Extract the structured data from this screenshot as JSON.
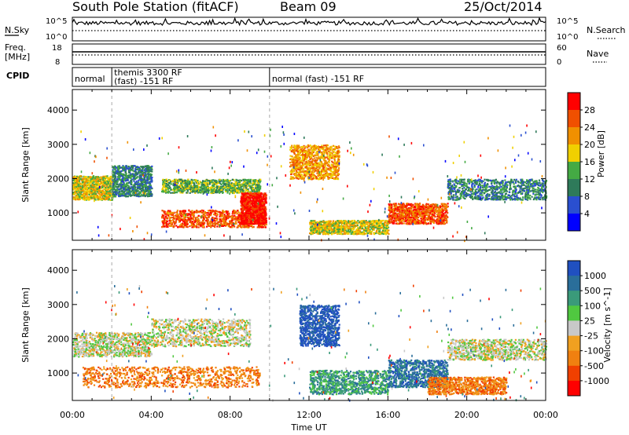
{
  "header": {
    "station": "South Pole Station (fitACF)",
    "beam": "Beam 09",
    "date": "25/Oct/2014"
  },
  "strip_labels": {
    "nsky": "N.Sky",
    "nsky_ticks": [
      "10^5",
      "10^0"
    ],
    "nsearch": "N.Search",
    "nsearch_ticks": [
      "10^5",
      "10^0"
    ],
    "freq": "Freq.",
    "freq_unit": "[MHz]",
    "freq_ticks": [
      "18",
      "8"
    ],
    "nave": "Nave",
    "nave_ticks": [
      "60",
      "0"
    ],
    "cpid": "CPID"
  },
  "cpid_segments": [
    {
      "start": 0.0,
      "end": 2.0,
      "line1": "normal",
      "line2": ""
    },
    {
      "start": 2.0,
      "end": 10.0,
      "line1": "themis 3300 RF",
      "line2": "(fast) -151 RF"
    },
    {
      "start": 10.0,
      "end": 24.0,
      "line1": "normal (fast) -151 RF",
      "line2": ""
    }
  ],
  "chart_data": [
    {
      "type": "heatmap",
      "name": "Power",
      "xlabel": "",
      "ylabel": "Slant Range [km]",
      "x_range_hours": [
        0,
        24
      ],
      "ylim": [
        200,
        4600
      ],
      "y_ticks": [
        "1000",
        "2000",
        "3000",
        "4000"
      ],
      "colorbar_label": "Power [dB]",
      "colorbar_ticks": [
        "4",
        "8",
        "12",
        "16",
        "20",
        "24",
        "28"
      ],
      "colorbar_colors": [
        "#0000ff",
        "#2a4fd0",
        "#2e7a5a",
        "#44aa44",
        "#f0d000",
        "#f09000",
        "#f05000",
        "#ff0000"
      ],
      "bands": [
        {
          "t0": 0.0,
          "t1": 2.0,
          "r0": 1400,
          "r1": 2100,
          "level": 4
        },
        {
          "t0": 2.0,
          "t1": 4.0,
          "r0": 1500,
          "r1": 2400,
          "level": 2
        },
        {
          "t0": 4.5,
          "t1": 9.5,
          "r0": 1600,
          "r1": 2000,
          "level": 3
        },
        {
          "t0": 4.5,
          "t1": 9.8,
          "r0": 600,
          "r1": 1100,
          "level": 6
        },
        {
          "t0": 8.5,
          "t1": 9.8,
          "r0": 700,
          "r1": 1600,
          "level": 7
        },
        {
          "t0": 11.0,
          "t1": 13.5,
          "r0": 2000,
          "r1": 3000,
          "level": 5
        },
        {
          "t0": 12.0,
          "t1": 16.0,
          "r0": 400,
          "r1": 800,
          "level": 4
        },
        {
          "t0": 16.0,
          "t1": 19.0,
          "r0": 700,
          "r1": 1300,
          "level": 6
        },
        {
          "t0": 19.0,
          "t1": 24.0,
          "r0": 1400,
          "r1": 2000,
          "level": 2
        }
      ]
    },
    {
      "type": "heatmap",
      "name": "Velocity",
      "xlabel": "Time UT",
      "ylabel": "Slant Range [km]",
      "x_range_hours": [
        0,
        24
      ],
      "x_ticks": [
        "00:00",
        "04:00",
        "08:00",
        "12:00",
        "16:00",
        "20:00",
        "00:00"
      ],
      "ylim": [
        200,
        4600
      ],
      "y_ticks": [
        "1000",
        "2000",
        "3000",
        "4000"
      ],
      "colorbar_label": "Velocity [m s^-1]",
      "colorbar_ticks": [
        "1000",
        "500",
        "100",
        "25",
        "-25",
        "-100",
        "-500",
        "-1000"
      ],
      "colorbar_colors": [
        "#2050c0",
        "#2a6e9a",
        "#3a9a7a",
        "#50c840",
        "#c8c8c8",
        "#f0a020",
        "#f08010",
        "#f04000",
        "#ff0000"
      ],
      "bands": [
        {
          "t0": 0.0,
          "t1": 4.0,
          "r0": 1500,
          "r1": 2200,
          "level": 4
        },
        {
          "t0": 0.5,
          "t1": 9.5,
          "r0": 600,
          "r1": 1200,
          "level": 6
        },
        {
          "t0": 4.0,
          "t1": 9.0,
          "r0": 1800,
          "r1": 2600,
          "level": 4
        },
        {
          "t0": 11.5,
          "t1": 13.5,
          "r0": 1800,
          "r1": 3000,
          "level": 0
        },
        {
          "t0": 12.0,
          "t1": 16.0,
          "r0": 400,
          "r1": 1100,
          "level": 2
        },
        {
          "t0": 16.0,
          "t1": 19.0,
          "r0": 600,
          "r1": 1400,
          "level": 1
        },
        {
          "t0": 18.0,
          "t1": 22.0,
          "r0": 400,
          "r1": 900,
          "level": 6
        },
        {
          "t0": 19.0,
          "t1": 24.0,
          "r0": 1400,
          "r1": 2000,
          "level": 4
        }
      ]
    }
  ]
}
